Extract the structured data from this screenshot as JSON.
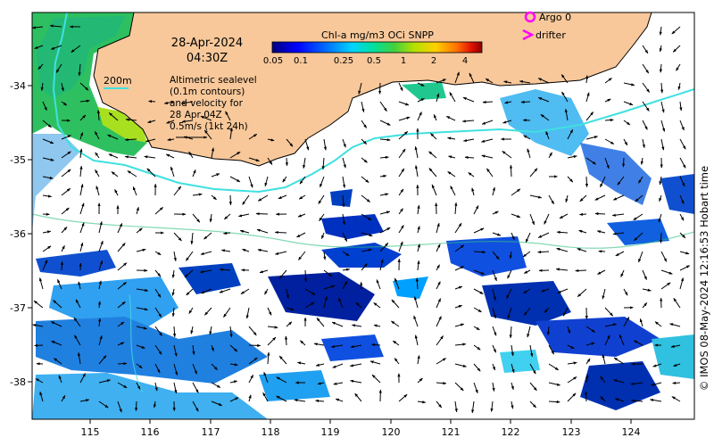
{
  "date_label": "28-Apr-2024",
  "time_label": "04:30Z",
  "colorbar": {
    "title": "Chl-a mg/m3 OCi SNPP",
    "tick_labels": [
      "0.05",
      "0.1",
      "0.25",
      "0.5",
      "1",
      "2",
      "4"
    ],
    "scale": "log",
    "colors": [
      "#00007f",
      "#0000ff",
      "#0080ff",
      "#00d4ff",
      "#00e0a0",
      "#40d040",
      "#b8e000",
      "#ffd000",
      "#ff7000",
      "#e01000",
      "#8b0000"
    ]
  },
  "legend": {
    "argo_label": "Argo 0",
    "argo_color": "#ff00ff",
    "drifter_label": "drifter",
    "drifter_color": "#ff00ff"
  },
  "contour_label": "200m",
  "contour_color": "#40e0e0",
  "altimetry_note": [
    "Altimetric sealevel",
    "(0.1m contours)",
    "and velocity for",
    "28 Apr 04Z",
    "0.5m/s (1kt 24h)"
  ],
  "credit": "© IMOS 08-May-2024 12:16:53 Hobart time",
  "x_axis": {
    "tick_labels": [
      "115",
      "116",
      "117",
      "118",
      "119",
      "120",
      "121",
      "122",
      "123",
      "124"
    ]
  },
  "y_axis": {
    "tick_labels": [
      "-34",
      "-35",
      "-36",
      "-37",
      "-38"
    ]
  },
  "land_color": "#f8c89a",
  "icons": [
    "argo-float-icon",
    "drifter-icon",
    "velocity-arrow-icon"
  ]
}
